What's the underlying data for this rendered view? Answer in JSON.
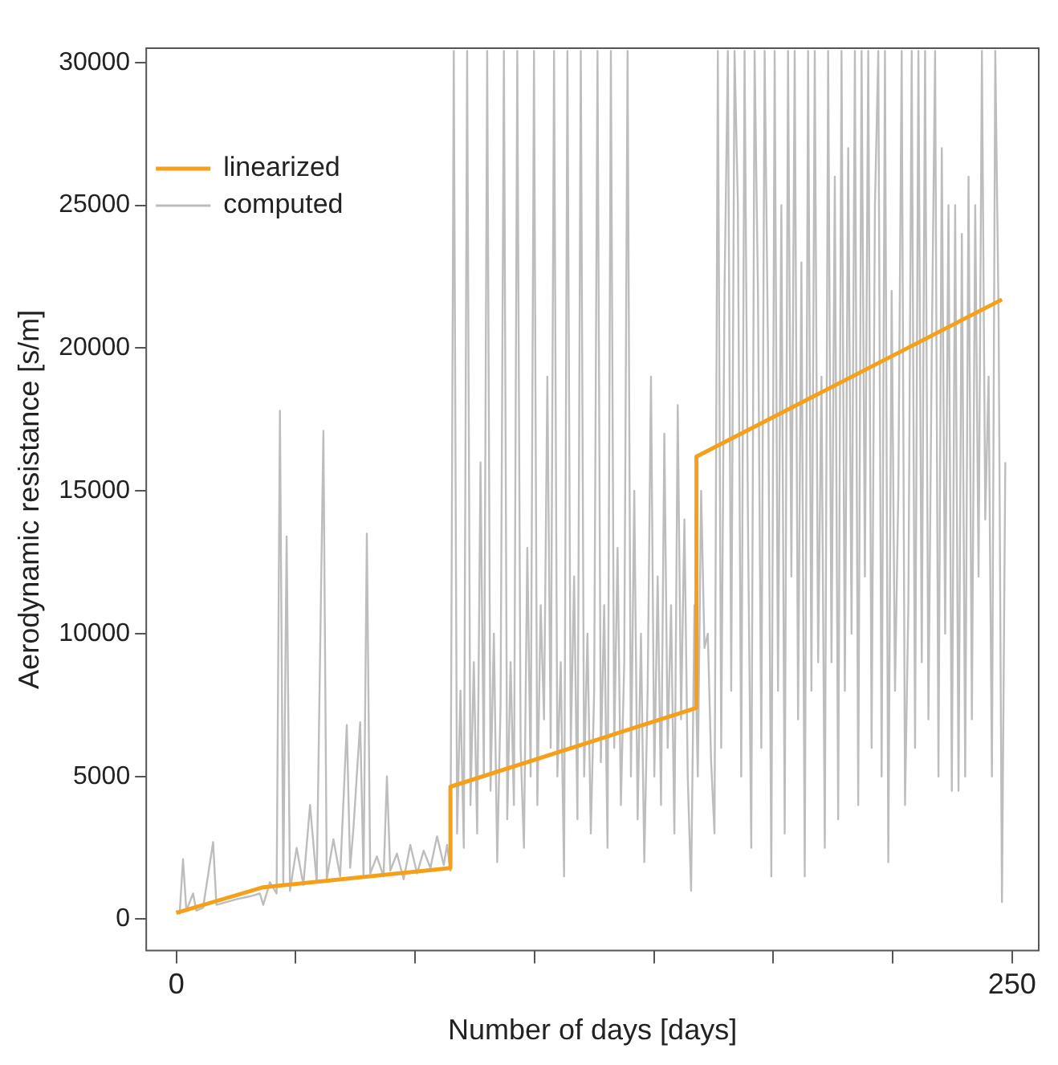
{
  "chart_data": {
    "type": "line",
    "xlabel": "Number of days [days]",
    "ylabel": "Aerodynamic resistance [s/m]",
    "xlim": [
      -9,
      258
    ],
    "ylim": [
      -1100,
      30500
    ],
    "xticks": [
      0,
      {
        "value": 35.714,
        "label": null
      },
      {
        "value": 71.429,
        "label": null
      },
      {
        "value": 107.143,
        "label": null
      },
      {
        "value": 142.857,
        "label": null
      },
      {
        "value": 178.571,
        "label": null
      },
      {
        "value": 214.286,
        "label": null
      },
      250
    ],
    "yticks": [
      0,
      5000,
      10000,
      15000,
      20000,
      25000,
      30000
    ],
    "grid": false,
    "legend": "top left",
    "marker": "none",
    "line_style": "solid",
    "series": [
      {
        "name": "linearized",
        "color": "#f5a01a",
        "x": [
          0,
          26,
          82,
          82,
          155.6,
          155.6,
          247
        ],
        "values": [
          220,
          1120,
          1790,
          4640,
          7400,
          16200,
          21700
        ]
      },
      {
        "name": "computed",
        "color": "#bdbdbd",
        "x": [
          0,
          1,
          2,
          3,
          5,
          6,
          8,
          11,
          12,
          15,
          18,
          22,
          25,
          26,
          28,
          30,
          31,
          32,
          33,
          34,
          36,
          38,
          40,
          42,
          44,
          45,
          47,
          49,
          51,
          52,
          53,
          55,
          56,
          57,
          58,
          60,
          62,
          63,
          64,
          66,
          68,
          70,
          72,
          74,
          76,
          78,
          80,
          81,
          82,
          83,
          84,
          85,
          86,
          87,
          88,
          89,
          90,
          91,
          92,
          93,
          94,
          95,
          96,
          97,
          98,
          99,
          100,
          101,
          102,
          103,
          104,
          105,
          106,
          107,
          108,
          109,
          110,
          111,
          112,
          113,
          114,
          115,
          116,
          117,
          118,
          119,
          120,
          121,
          122,
          123,
          124,
          125,
          126,
          127,
          128,
          129,
          130,
          131,
          132,
          133,
          134,
          135,
          136,
          137,
          138,
          139,
          140,
          141,
          142,
          143,
          144,
          145,
          146,
          147,
          148,
          149,
          150,
          151,
          152,
          153,
          154,
          155,
          156,
          157,
          158,
          159,
          160,
          161,
          162,
          163,
          164,
          165,
          166,
          167,
          168,
          169,
          170,
          171,
          172,
          173,
          174,
          175,
          176,
          177,
          178,
          179,
          180,
          181,
          182,
          183,
          184,
          185,
          186,
          187,
          188,
          189,
          190,
          191,
          192,
          193,
          194,
          195,
          196,
          197,
          198,
          199,
          200,
          201,
          202,
          203,
          204,
          205,
          206,
          207,
          208,
          209,
          210,
          211,
          212,
          213,
          214,
          215,
          216,
          217,
          218,
          219,
          220,
          221,
          222,
          223,
          224,
          225,
          226,
          227,
          228,
          229,
          230,
          231,
          232,
          233,
          234,
          235,
          236,
          237,
          238,
          239,
          240,
          241,
          242,
          243,
          244,
          245,
          246,
          247,
          248
        ],
        "values": [
          300,
          200,
          2100,
          300,
          900,
          300,
          400,
          2700,
          500,
          600,
          700,
          800,
          900,
          500,
          1300,
          900,
          17800,
          1200,
          13400,
          1000,
          2500,
          1200,
          4000,
          1300,
          17100,
          1400,
          2800,
          1500,
          6800,
          1800,
          3200,
          6900,
          1500,
          13500,
          1600,
          2200,
          1500,
          5000,
          1700,
          2300,
          1400,
          2600,
          1600,
          2400,
          1800,
          2900,
          1900,
          2600,
          1700,
          30400,
          3000,
          8000,
          2500,
          30400,
          4000,
          9000,
          3000,
          16000,
          5000,
          30400,
          4500,
          10000,
          2000,
          7500,
          30400,
          3500,
          9000,
          4000,
          30400,
          6000,
          2500,
          13000,
          5000,
          30400,
          4000,
          11000,
          7000,
          19000,
          6000,
          30400,
          5000,
          9000,
          1500,
          30400,
          6000,
          12000,
          3500,
          30400,
          5000,
          10000,
          3000,
          8000,
          30400,
          5500,
          11000,
          2500,
          30400,
          6000,
          13000,
          4000,
          9000,
          30400,
          5000,
          15000,
          3500,
          10000,
          2000,
          8000,
          19000,
          5000,
          12000,
          4000,
          17000,
          6000,
          11000,
          3000,
          18000,
          7000,
          14000,
          5000,
          1000,
          11000,
          5000,
          15000,
          9500,
          10000,
          5500,
          3000,
          30400,
          6000,
          22000,
          30400,
          8000,
          30400,
          25000,
          5000,
          30400,
          14000,
          2500,
          30400,
          22000,
          6000,
          30400,
          20000,
          1500,
          30400,
          8000,
          25000,
          3000,
          30400,
          12000,
          30400,
          7000,
          23000,
          1500,
          30400,
          8000,
          30400,
          9000,
          19000,
          2500,
          30400,
          9000,
          26000,
          3500,
          30400,
          8000,
          27000,
          10000,
          30400,
          4000,
          30400,
          12000,
          30400,
          6000,
          25000,
          30400,
          5000,
          30400,
          2000,
          22000,
          8000,
          15000,
          30400,
          4000,
          11000,
          30400,
          6000,
          30400,
          9000,
          30400,
          7000,
          20000,
          30400,
          5000,
          27000,
          10000,
          25000,
          4500,
          25000,
          4500,
          24000,
          5000,
          26000,
          7000,
          25000,
          12000,
          30400,
          14000,
          19000,
          5000,
          30400,
          21000,
          600,
          16000
        ]
      }
    ]
  }
}
